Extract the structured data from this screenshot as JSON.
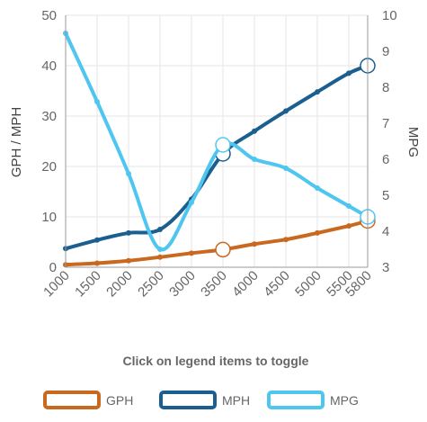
{
  "chart_data": {
    "type": "line",
    "x": [
      1000,
      1500,
      2000,
      2500,
      3000,
      3500,
      4000,
      4500,
      5000,
      5500,
      5800
    ],
    "x_tick_labels": [
      "1000",
      "1500",
      "2000",
      "2500",
      "3000",
      "3500",
      "4000",
      "4500",
      "5000",
      "5500",
      "5800"
    ],
    "y_left_label": "GPH / MPH",
    "y_left_lim": [
      0,
      50
    ],
    "y_left_ticks": [
      "0",
      "10",
      "20",
      "30",
      "40",
      "50"
    ],
    "y_right_label": "MPG",
    "y_right_lim": [
      3,
      10
    ],
    "y_right_ticks": [
      "3",
      "4",
      "5",
      "6",
      "7",
      "8",
      "9",
      "10"
    ],
    "grid": true,
    "legend_position": "bottom",
    "caption": "Click on legend items to toggle",
    "series": [
      {
        "name": "GPH",
        "axis": "left",
        "color": "#c9681f",
        "values": [
          0.5,
          0.8,
          1.3,
          2.0,
          2.8,
          3.5,
          4.6,
          5.5,
          6.8,
          8.2,
          9.2
        ],
        "highlighted_points": [
          5,
          10
        ]
      },
      {
        "name": "MPH",
        "axis": "left",
        "color": "#1a5f8f",
        "values": [
          3.7,
          5.4,
          6.8,
          7.5,
          13.5,
          22.5,
          27.0,
          31.0,
          34.8,
          38.5,
          40.0
        ],
        "highlighted_points": [
          5,
          10
        ]
      },
      {
        "name": "MPG",
        "axis": "right",
        "color": "#4fc6f0",
        "values": [
          9.5,
          7.6,
          5.6,
          3.5,
          4.8,
          6.4,
          6.0,
          5.75,
          5.2,
          4.7,
          4.4
        ],
        "highlighted_points": [
          5,
          10
        ]
      }
    ]
  }
}
